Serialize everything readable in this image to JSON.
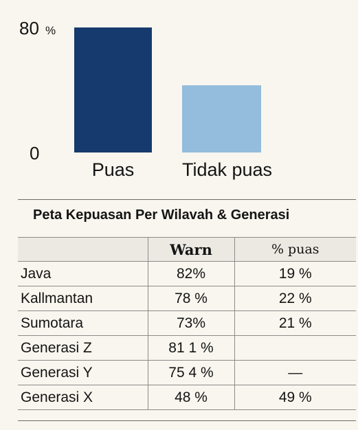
{
  "chart_data": {
    "type": "bar",
    "categories": [
      "Puas",
      "Tidak puas"
    ],
    "values": [
      80,
      43
    ],
    "colors": [
      "#163a6e",
      "#93bcdd"
    ],
    "ylim": [
      0,
      80
    ],
    "y_ticks": [
      "0",
      "80"
    ],
    "y_unit": "%",
    "title": "",
    "xlabel": "",
    "ylabel": ""
  },
  "table": {
    "title": "Peta Kepuasan Per Wilavah & Generasi",
    "headers": [
      "",
      "Warn",
      "% puas"
    ],
    "rows": [
      {
        "label": "Java",
        "warn": "82%",
        "puas": "19 %"
      },
      {
        "label": "Kallmantan",
        "warn": "78 %",
        "puas": "22 %"
      },
      {
        "label": "Sumotara",
        "warn": "73%",
        "puas": "21 %"
      },
      {
        "label": "Generasi Z",
        "warn": "81 1 %",
        "puas": ""
      },
      {
        "label": "Generasi Y",
        "warn": "75 4 %",
        "puas": "—"
      },
      {
        "label": "Generasi X",
        "warn": "48 %",
        "puas": "49 %"
      }
    ]
  }
}
